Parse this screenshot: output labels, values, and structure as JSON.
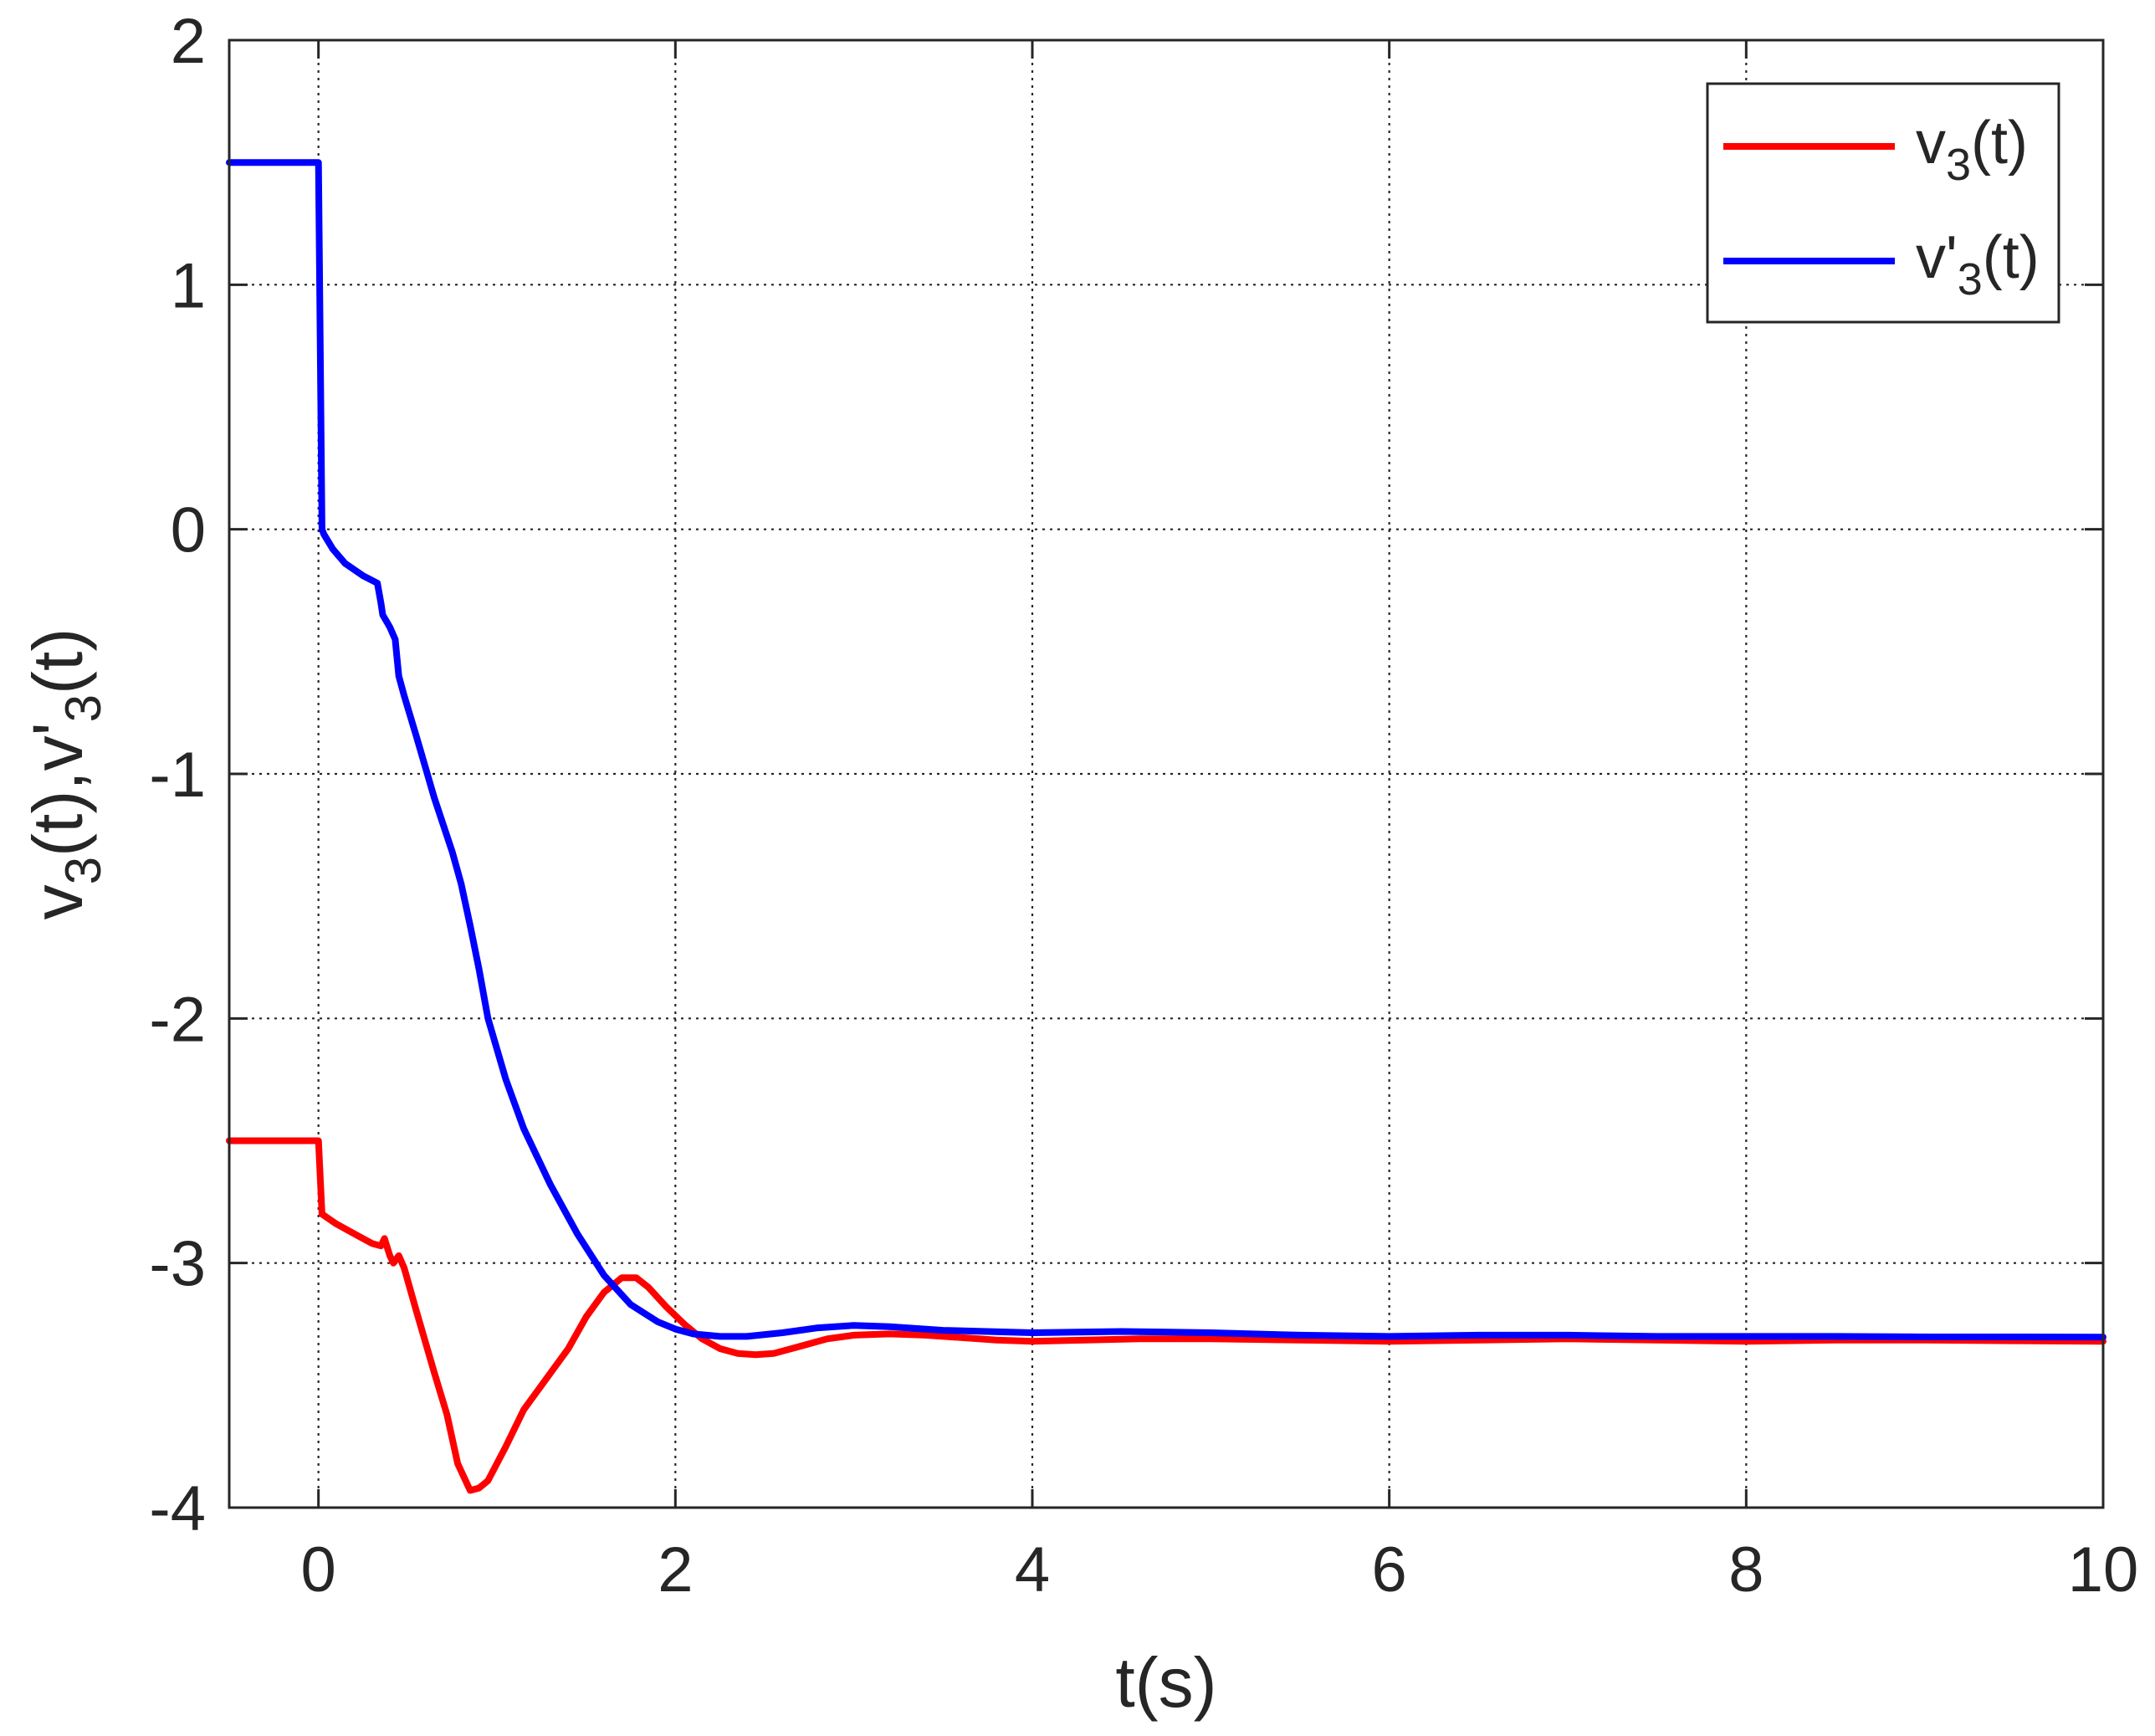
{
  "chart_data": {
    "type": "line",
    "xlabel": "t(s)",
    "ylabel_parts": [
      "v",
      "3",
      "(t),v'",
      "3",
      "(t)"
    ],
    "xlim": [
      -0.5,
      10
    ],
    "ylim": [
      -4,
      2
    ],
    "xticks": [
      0,
      2,
      4,
      6,
      8,
      10
    ],
    "yticks": [
      -4,
      -3,
      -2,
      -1,
      0,
      1,
      2
    ],
    "xtick_labels": [
      "0",
      "2",
      "4",
      "6",
      "8",
      "10"
    ],
    "ytick_labels": [
      "-4",
      "-3",
      "-2",
      "-1",
      "0",
      "1",
      "2"
    ],
    "grid": true,
    "legend_position": "top-right",
    "series": [
      {
        "name_parts": [
          "v",
          "3",
          "(t)"
        ],
        "color": "#ff0000",
        "points": [
          [
            -0.5,
            -2.5
          ],
          [
            0.0,
            -2.5
          ],
          [
            0.02,
            -2.8
          ],
          [
            0.1,
            -2.84
          ],
          [
            0.2,
            -2.88
          ],
          [
            0.3,
            -2.92
          ],
          [
            0.35,
            -2.93
          ],
          [
            0.37,
            -2.9
          ],
          [
            0.4,
            -2.97
          ],
          [
            0.42,
            -3.0
          ],
          [
            0.45,
            -2.97
          ],
          [
            0.48,
            -3.02
          ],
          [
            0.55,
            -3.2
          ],
          [
            0.65,
            -3.45
          ],
          [
            0.72,
            -3.62
          ],
          [
            0.78,
            -3.82
          ],
          [
            0.85,
            -3.93
          ],
          [
            0.9,
            -3.92
          ],
          [
            0.95,
            -3.89
          ],
          [
            1.05,
            -3.75
          ],
          [
            1.15,
            -3.6
          ],
          [
            1.3,
            -3.45
          ],
          [
            1.4,
            -3.35
          ],
          [
            1.5,
            -3.22
          ],
          [
            1.6,
            -3.12
          ],
          [
            1.7,
            -3.06
          ],
          [
            1.78,
            -3.06
          ],
          [
            1.85,
            -3.1
          ],
          [
            1.95,
            -3.18
          ],
          [
            2.05,
            -3.25
          ],
          [
            2.15,
            -3.31
          ],
          [
            2.25,
            -3.35
          ],
          [
            2.35,
            -3.37
          ],
          [
            2.45,
            -3.375
          ],
          [
            2.55,
            -3.37
          ],
          [
            2.7,
            -3.34
          ],
          [
            2.85,
            -3.31
          ],
          [
            3.0,
            -3.295
          ],
          [
            3.2,
            -3.29
          ],
          [
            3.4,
            -3.295
          ],
          [
            3.6,
            -3.305
          ],
          [
            3.8,
            -3.315
          ],
          [
            4.0,
            -3.32
          ],
          [
            4.3,
            -3.315
          ],
          [
            4.6,
            -3.31
          ],
          [
            5.0,
            -3.31
          ],
          [
            5.5,
            -3.315
          ],
          [
            6.0,
            -3.32
          ],
          [
            6.5,
            -3.315
          ],
          [
            7.0,
            -3.31
          ],
          [
            7.5,
            -3.315
          ],
          [
            8.0,
            -3.32
          ],
          [
            8.5,
            -3.315
          ],
          [
            9.0,
            -3.315
          ],
          [
            9.5,
            -3.318
          ],
          [
            10.0,
            -3.32
          ]
        ]
      },
      {
        "name_parts": [
          "v'",
          "3",
          "(t)"
        ],
        "color": "#0000ff",
        "points": [
          [
            -0.5,
            1.5
          ],
          [
            0.0,
            1.5
          ],
          [
            0.02,
            0.0
          ],
          [
            0.03,
            -0.02
          ],
          [
            0.08,
            -0.08
          ],
          [
            0.15,
            -0.14
          ],
          [
            0.25,
            -0.19
          ],
          [
            0.33,
            -0.22
          ],
          [
            0.35,
            -0.3
          ],
          [
            0.36,
            -0.35
          ],
          [
            0.4,
            -0.4
          ],
          [
            0.43,
            -0.45
          ],
          [
            0.45,
            -0.6
          ],
          [
            0.48,
            -0.68
          ],
          [
            0.55,
            -0.85
          ],
          [
            0.65,
            -1.1
          ],
          [
            0.75,
            -1.32
          ],
          [
            0.8,
            -1.45
          ],
          [
            0.85,
            -1.62
          ],
          [
            0.9,
            -1.8
          ],
          [
            0.95,
            -2.0
          ],
          [
            1.05,
            -2.25
          ],
          [
            1.15,
            -2.45
          ],
          [
            1.3,
            -2.68
          ],
          [
            1.45,
            -2.88
          ],
          [
            1.6,
            -3.05
          ],
          [
            1.75,
            -3.17
          ],
          [
            1.9,
            -3.24
          ],
          [
            2.0,
            -3.27
          ],
          [
            2.1,
            -3.29
          ],
          [
            2.25,
            -3.3
          ],
          [
            2.4,
            -3.3
          ],
          [
            2.6,
            -3.285
          ],
          [
            2.8,
            -3.265
          ],
          [
            3.0,
            -3.255
          ],
          [
            3.2,
            -3.26
          ],
          [
            3.5,
            -3.275
          ],
          [
            4.0,
            -3.285
          ],
          [
            4.5,
            -3.28
          ],
          [
            5.0,
            -3.285
          ],
          [
            5.5,
            -3.295
          ],
          [
            6.0,
            -3.3
          ],
          [
            6.5,
            -3.295
          ],
          [
            7.0,
            -3.295
          ],
          [
            7.5,
            -3.3
          ],
          [
            8.0,
            -3.3
          ],
          [
            8.5,
            -3.3
          ],
          [
            9.0,
            -3.302
          ],
          [
            9.5,
            -3.302
          ],
          [
            10.0,
            -3.303
          ]
        ]
      }
    ]
  }
}
